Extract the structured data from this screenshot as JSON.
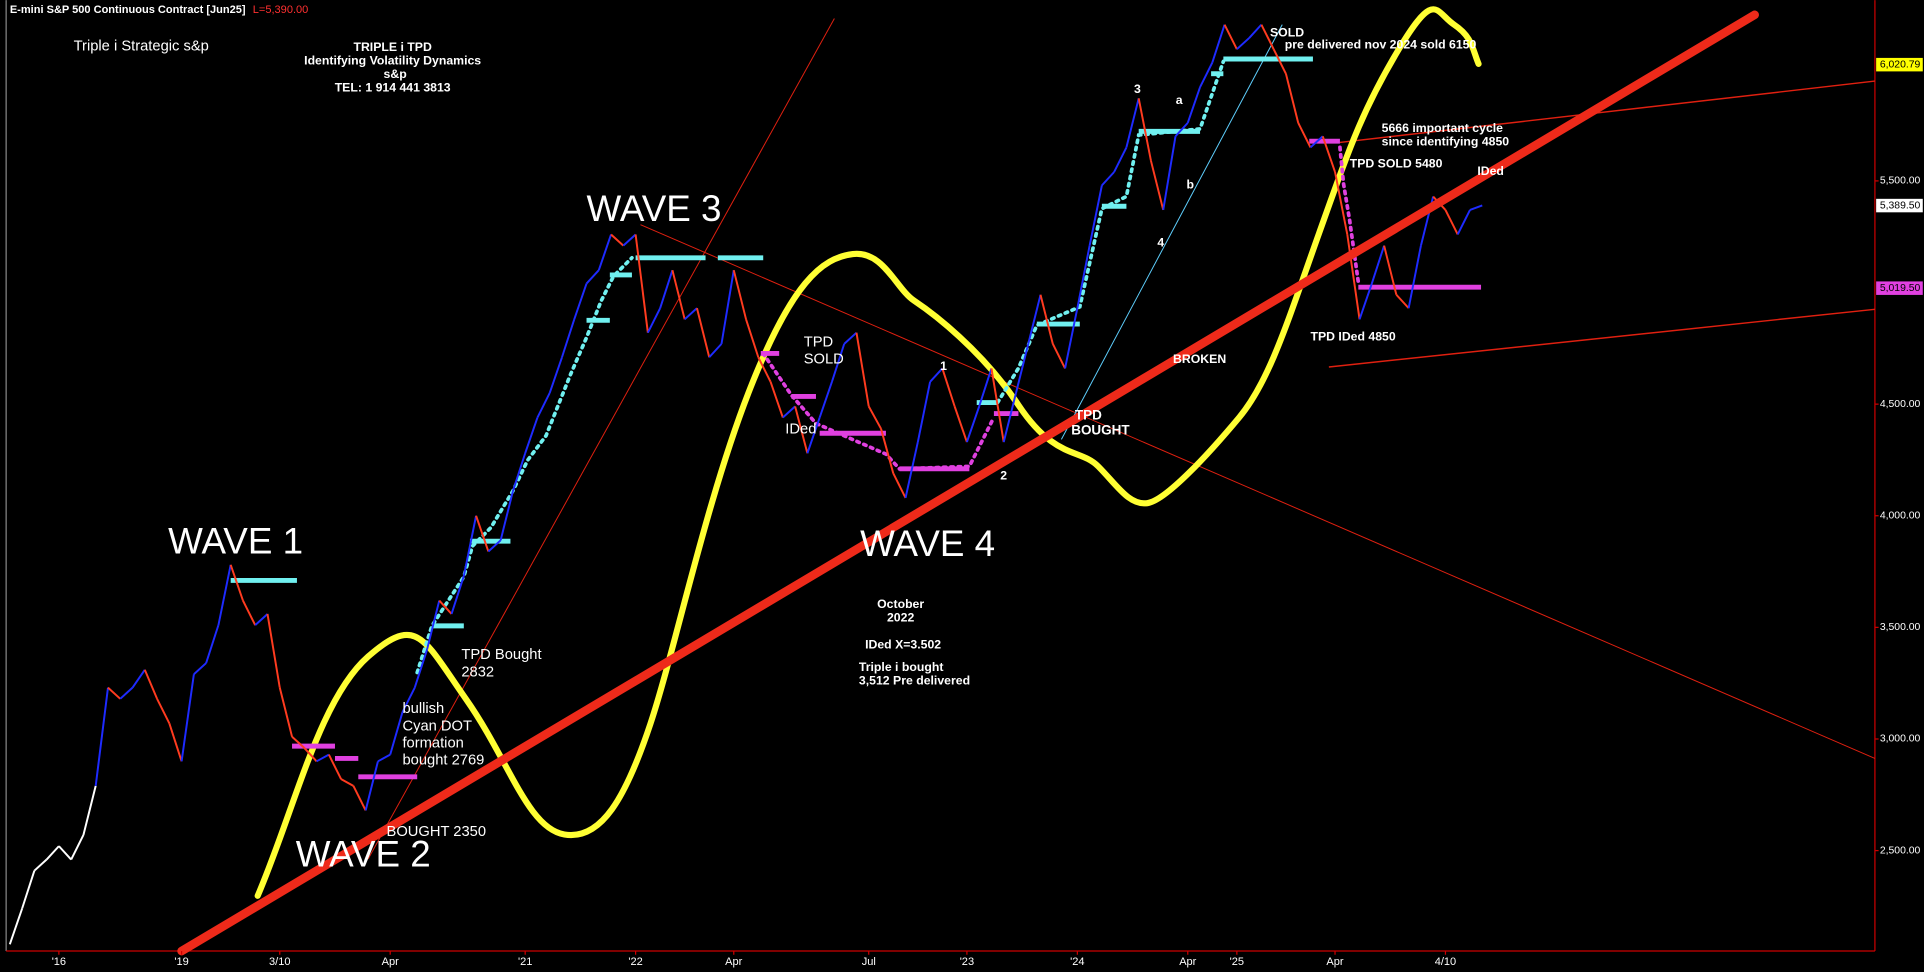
{
  "chart_data": {
    "type": "line",
    "title": "E-mini S&P 500 Continuous Contract [Jun25]",
    "subtitle": "L=5,390.00",
    "categories": [
      null,
      null,
      null,
      null,
      "'16",
      null,
      null,
      null,
      null,
      null,
      null,
      null,
      null,
      null,
      "'19",
      null,
      null,
      null,
      null,
      null,
      null,
      null,
      "3/10",
      null,
      null,
      null,
      null,
      null,
      null,
      null,
      null,
      "Apr",
      null,
      null,
      null,
      null,
      null,
      null,
      null,
      null,
      null,
      null,
      "'21",
      null,
      null,
      null,
      null,
      null,
      null,
      null,
      null,
      "'22",
      null,
      null,
      null,
      null,
      null,
      null,
      null,
      "Apr",
      null,
      null,
      null,
      null,
      null,
      null,
      null,
      null,
      null,
      null,
      "Jul",
      null,
      null,
      null,
      null,
      null,
      null,
      null,
      "'23",
      null,
      null,
      null,
      null,
      null,
      null,
      null,
      null,
      "'24",
      null,
      null,
      null,
      null,
      null,
      null,
      null,
      null,
      "Apr",
      null,
      null,
      null,
      "'25",
      null,
      null,
      null,
      null,
      null,
      null,
      null,
      "Apr",
      null,
      null,
      null,
      null,
      null,
      null,
      null,
      null,
      "4/10",
      null,
      null,
      null
    ],
    "series": [
      {
        "color": "#ffffff",
        "values": [
          2080,
          2240,
          2410,
          2460,
          2520,
          2460,
          2570,
          2790,
          null,
          null,
          null,
          null,
          null,
          null,
          null,
          null,
          null,
          null,
          null,
          null,
          null,
          null,
          null,
          null,
          null,
          null,
          null,
          null,
          null,
          null,
          null,
          null,
          null,
          null,
          null,
          null,
          null,
          null,
          null,
          null,
          null,
          null,
          null,
          null,
          null,
          null,
          null,
          null,
          null,
          null,
          null,
          null,
          null,
          null,
          null,
          null,
          null,
          null,
          null,
          null,
          null,
          null,
          null,
          null,
          null,
          null,
          null,
          null,
          null,
          null,
          null,
          null,
          null,
          null,
          null,
          null,
          null,
          null,
          null,
          null,
          null,
          null,
          null,
          null,
          null,
          null,
          null,
          null,
          null,
          null,
          null,
          null,
          null,
          null,
          null,
          null,
          null,
          null,
          null,
          null,
          null,
          null,
          null,
          null,
          null,
          null,
          null,
          null,
          null,
          null,
          null,
          null,
          null,
          null,
          null,
          null,
          null,
          null,
          null,
          null,
          null
        ]
      },
      {
        "color": "#ff3b1f",
        "up_color": "#1e2bff",
        "values": [
          null,
          null,
          null,
          null,
          null,
          null,
          null,
          2790,
          3230,
          3180,
          3230,
          3310,
          3180,
          3070,
          2900,
          3290,
          3340,
          3510,
          3780,
          3620,
          3510,
          3560,
          3230,
          3010,
          2960,
          2900,
          2930,
          2820,
          2790,
          2680,
          2900,
          2930,
          3120,
          3230,
          3400,
          3620,
          3560,
          3730,
          4000,
          3840,
          3890,
          4110,
          4280,
          4440,
          4550,
          4710,
          4880,
          5040,
          5100,
          5260,
          5210,
          5260,
          4820,
          4930,
          5100,
          4880,
          4930,
          4710,
          4770,
          5100,
          4880,
          4710,
          4600,
          4440,
          4490,
          4280,
          4440,
          4600,
          4770,
          4820,
          4490,
          4390,
          4190,
          4080,
          4330,
          4600,
          4660,
          4490,
          4330,
          4490,
          4660,
          4330,
          4550,
          4770,
          4990,
          4770,
          4660,
          4930,
          5210,
          5480,
          5540,
          5650,
          5870,
          5590,
          5370,
          5700,
          5760,
          5920,
          6030,
          6200,
          6090,
          6140,
          6200,
          6090,
          5980,
          5760,
          5650,
          5700,
          5540,
          5260,
          4880,
          5040,
          5210,
          4990,
          4930,
          5210,
          5430,
          5370,
          5260,
          5370,
          5390
        ]
      }
    ],
    "ylim": [
      2050,
      6310
    ],
    "yticks": [
      {
        "value": 2500,
        "label": "2,500.00"
      },
      {
        "value": 3000,
        "label": "3,000.00"
      },
      {
        "value": 3500,
        "label": "3,500.00"
      },
      {
        "value": 4000,
        "label": "4,000.00"
      },
      {
        "value": 4500,
        "label": "4,500.00"
      },
      {
        "value": 5500,
        "label": "5,500.00"
      }
    ],
    "price_markers": [
      {
        "value": 6020.79,
        "label": "6,020.79",
        "color": "#ffff00"
      },
      {
        "value": 5389.5,
        "label": "5,389.50",
        "color": "#ffffff"
      },
      {
        "value": 5019.5,
        "label": "5,019.50",
        "color": "#e040e0"
      }
    ],
    "annotations": [
      "Triple i Strategic  s&p",
      "TRIPLE i  TPD",
      "Identifying  Volatility Dynamics",
      "s&p",
      "TEL: 1 914 441 3813",
      "WAVE 1",
      "WAVE 2",
      "WAVE 3",
      "WAVE 4",
      "TPD Bought",
      "2832",
      "bullish",
      "Cyan DOT",
      "formation",
      "bought 2769",
      "BOUGHT 2350",
      "TPD",
      "SOLD",
      "IDed",
      "1",
      "2",
      "October",
      "2022",
      "IDed X=3.502",
      "Triple i bought",
      "3,512 Pre delivered",
      "TPD",
      "BOUGHT",
      "BROKEN",
      "3",
      "a",
      "b",
      "4",
      "SOLD",
      "pre delivered nov 2024 sold 6150",
      "5666 important cycle",
      "since identifying 4850",
      "TPD SOLD 5480",
      "IDed",
      "TPD IDed 4850"
    ],
    "grid": false
  }
}
